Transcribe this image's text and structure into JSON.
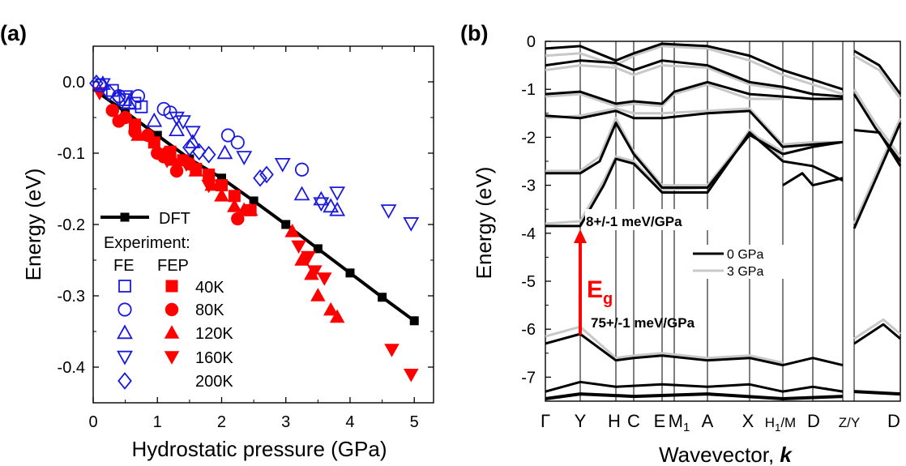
{
  "chart_data": [
    {
      "panel": "(a)",
      "type": "scatter",
      "xlabel": "Hydrostatic pressure (GPa)",
      "ylabel": "Energy (eV)",
      "xlim": [
        0,
        5.3
      ],
      "ylim": [
        -0.45,
        0.05
      ],
      "xticks": [
        0,
        1,
        2,
        3,
        4,
        5
      ],
      "yticks": [
        0.0,
        -0.1,
        -0.2,
        -0.3,
        -0.4
      ],
      "ytick_labels": [
        "0.0",
        "-0.1",
        "-0.2",
        "-0.3",
        "-0.4"
      ],
      "legend": {
        "placement": "lower-left",
        "dft_label": "DFT",
        "experiment_label": "Experiment:",
        "fe_label": "FE",
        "fep_label": "FEP",
        "temperatures": [
          "40K",
          "80K",
          "120K",
          "160K",
          "200K"
        ]
      },
      "dft": {
        "name": "DFT",
        "x": [
          0,
          0.5,
          1.0,
          1.5,
          2.0,
          2.5,
          3.0,
          3.5,
          4.0,
          4.5,
          5.0
        ],
        "y": [
          -0.01,
          -0.042,
          -0.075,
          -0.108,
          -0.135,
          -0.167,
          -0.2,
          -0.234,
          -0.268,
          -0.302,
          -0.335
        ]
      },
      "fe": [
        {
          "temperature": "40K",
          "marker": "square",
          "x": [
            0.3,
            0.5,
            0.65,
            0.75
          ],
          "y": [
            -0.012,
            -0.025,
            -0.03,
            -0.035
          ]
        },
        {
          "temperature": "80K",
          "marker": "circle",
          "x": [
            0.1,
            0.4,
            0.7,
            1.1,
            1.2,
            2.1,
            2.25,
            3.25
          ],
          "y": [
            -0.005,
            -0.02,
            -0.02,
            -0.038,
            -0.043,
            -0.075,
            -0.085,
            -0.123
          ]
        },
        {
          "temperature": "120K",
          "marker": "triangle-up",
          "x": [
            0.15,
            0.55,
            0.95,
            1.3,
            1.55,
            2.05,
            3.25,
            3.55,
            3.7,
            3.8
          ],
          "y": [
            -0.003,
            -0.03,
            -0.055,
            -0.068,
            -0.085,
            -0.1,
            -0.158,
            -0.165,
            -0.175,
            -0.18
          ]
        },
        {
          "temperature": "160K",
          "marker": "triangle-down",
          "x": [
            0.15,
            0.5,
            1.3,
            1.4,
            1.55,
            2.35,
            2.95,
            3.55,
            3.8,
            4.6,
            4.95
          ],
          "y": [
            -0.003,
            -0.02,
            -0.05,
            -0.055,
            -0.07,
            -0.105,
            -0.115,
            -0.17,
            -0.155,
            -0.18,
            -0.198
          ]
        },
        {
          "temperature": "200K",
          "marker": "diamond",
          "x": [
            0.05,
            0.25,
            0.4,
            1.5,
            1.65,
            1.8,
            2.6,
            2.7
          ],
          "y": [
            -0.002,
            -0.015,
            -0.022,
            -0.092,
            -0.098,
            -0.102,
            -0.135,
            -0.13
          ]
        }
      ],
      "fep": [
        {
          "temperature": "40K",
          "marker": "square",
          "x": [
            0.65,
            0.95,
            1.2,
            1.4,
            1.6,
            1.8,
            2.0,
            2.2,
            2.45
          ],
          "y": [
            -0.06,
            -0.085,
            -0.098,
            -0.11,
            -0.122,
            -0.13,
            -0.145,
            -0.16,
            -0.18
          ]
        },
        {
          "temperature": "80K",
          "marker": "circle",
          "x": [
            0.3,
            0.4,
            0.5,
            0.65,
            0.85,
            1.0,
            1.1,
            1.15,
            1.3,
            1.5,
            2.25
          ],
          "y": [
            -0.04,
            -0.055,
            -0.05,
            -0.07,
            -0.075,
            -0.1,
            -0.105,
            -0.1,
            -0.125,
            -0.115,
            -0.192
          ]
        },
        {
          "temperature": "120K",
          "marker": "triangle-up",
          "x": [
            0.7,
            1.25,
            1.6,
            1.85,
            2.0,
            2.2,
            2.35,
            2.45,
            3.1,
            3.25,
            3.4,
            3.5,
            3.7,
            3.8
          ],
          "y": [
            -0.075,
            -0.11,
            -0.125,
            -0.145,
            -0.16,
            -0.175,
            -0.18,
            -0.18,
            -0.21,
            -0.25,
            -0.27,
            -0.3,
            -0.32,
            -0.33
          ]
        },
        {
          "temperature": "160K",
          "marker": "triangle-down",
          "x": [
            0.1,
            1.15,
            1.45,
            1.8,
            3.2,
            3.35,
            3.45,
            3.6,
            4.65,
            4.95
          ],
          "y": [
            -0.015,
            -0.11,
            -0.115,
            -0.145,
            -0.23,
            -0.245,
            -0.265,
            -0.275,
            -0.375,
            -0.41
          ]
        }
      ]
    },
    {
      "panel": "(b)",
      "type": "line",
      "xlabel": "Wavevector, ",
      "xlabel_k": "k",
      "ylabel": "Energy (eV)",
      "ylim": [
        -7.5,
        0
      ],
      "yticks": [
        0,
        -1,
        -2,
        -3,
        -4,
        -5,
        -6,
        -7
      ],
      "ytick_labels": [
        "0",
        "-1",
        "-2",
        "-3",
        "-4",
        "-5",
        "-6",
        "-7"
      ],
      "kpath": [
        "Γ",
        "Y",
        "H",
        "C",
        "E",
        "M1",
        "A",
        "X",
        "H1/M",
        "D",
        "Z/Y",
        "D"
      ],
      "kpath_labels": [
        {
          "text": "Γ",
          "sub": ""
        },
        {
          "text": "Y",
          "sub": ""
        },
        {
          "text": "H",
          "sub": ""
        },
        {
          "text": "C",
          "sub": ""
        },
        {
          "text": "E",
          "sub": ""
        },
        {
          "text": "M",
          "sub": "1"
        },
        {
          "text": "A",
          "sub": ""
        },
        {
          "text": "X",
          "sub": ""
        },
        {
          "text": "H",
          "sub": "1",
          "after": "/M"
        },
        {
          "text": "D",
          "sub": ""
        },
        {
          "text": "Z/Y",
          "sub": ""
        },
        {
          "text": "D",
          "sub": ""
        }
      ],
      "legend": {
        "placement": "center-right",
        "series": [
          "0 GPa",
          "3 GPa"
        ]
      },
      "series": [
        {
          "name": "0 GPa",
          "color": "#000000"
        },
        {
          "name": "3 GPa",
          "color": "#c8c8c8"
        }
      ],
      "annotations": {
        "gap_label": "E",
        "gap_sub": "g",
        "cb_rate": "8+/-1 meV/GPa",
        "vb_rate": "75+/-1 meV/GPa",
        "cbm_energy": -3.85,
        "vbm_energy": -6.1
      }
    }
  ],
  "panel_labels": [
    "(a)",
    "(b)"
  ],
  "colors": {
    "experiment": "#ff0000",
    "fe": "#1a1adf",
    "dft": "#000000",
    "band0": "#000000",
    "band3": "#c8c8c8",
    "arrow": "#ff0000"
  }
}
